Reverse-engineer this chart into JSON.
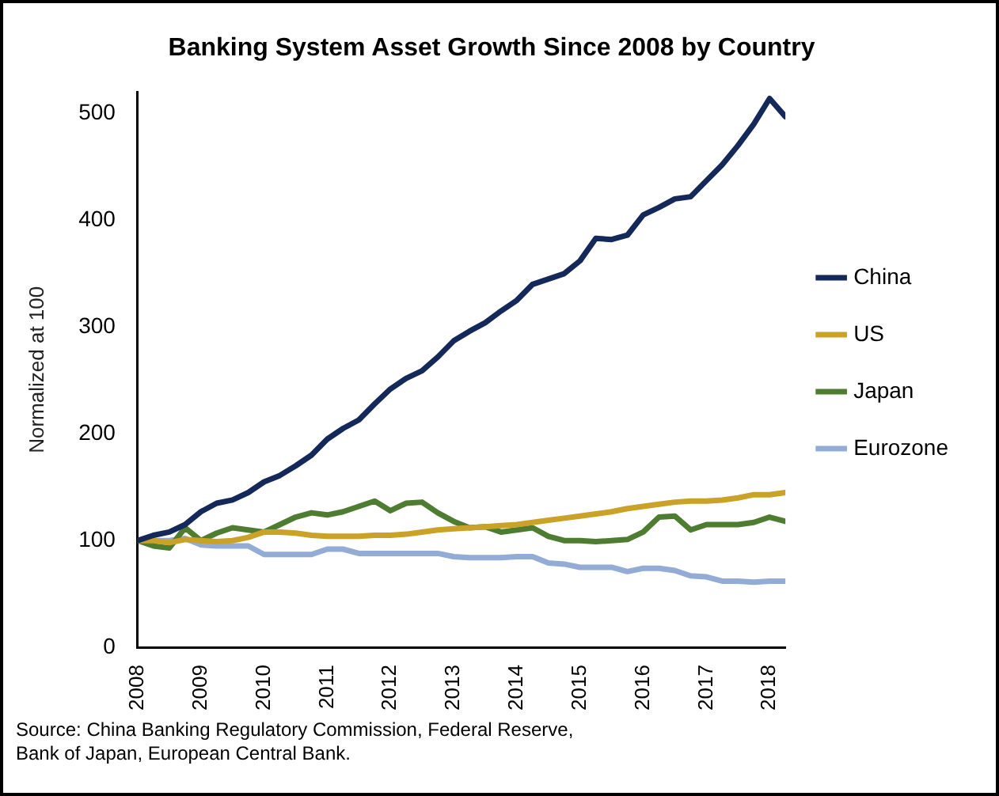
{
  "chart_data": {
    "type": "line",
    "title": "Banking System Asset Growth Since 2008 by Country",
    "ylabel": "Normalized at 100",
    "x": [
      2008,
      2008.25,
      2008.5,
      2008.75,
      2009,
      2009.25,
      2009.5,
      2009.75,
      2010,
      2010.25,
      2010.5,
      2010.75,
      2011,
      2011.25,
      2011.5,
      2011.75,
      2012,
      2012.25,
      2012.5,
      2012.75,
      2013,
      2013.25,
      2013.5,
      2013.75,
      2014,
      2014.25,
      2014.5,
      2014.75,
      2015,
      2015.25,
      2015.5,
      2015.75,
      2016,
      2016.25,
      2016.5,
      2016.75,
      2017,
      2017.25,
      2017.5,
      2017.75,
      2018,
      2018.25
    ],
    "series": [
      {
        "name": "China",
        "color": "#14285a",
        "values": [
          100,
          105,
          108,
          115,
          127,
          135,
          138,
          145,
          155,
          161,
          170,
          180,
          195,
          205,
          213,
          228,
          242,
          252,
          259,
          272,
          287,
          296,
          304,
          315,
          325,
          340,
          345,
          350,
          362,
          383,
          382,
          386,
          405,
          412,
          420,
          422,
          437,
          452,
          470,
          490,
          514,
          497
        ]
      },
      {
        "name": "US",
        "color": "#c9a227",
        "values": [
          100,
          100,
          98,
          101,
          100,
          99,
          100,
          103,
          108,
          108,
          107,
          105,
          104,
          104,
          104,
          105,
          105,
          106,
          108,
          110,
          111,
          112,
          113,
          114,
          115,
          117,
          119,
          121,
          123,
          125,
          127,
          130,
          132,
          134,
          136,
          137,
          137,
          138,
          140,
          143,
          143,
          145
        ]
      },
      {
        "name": "Japan",
        "color": "#4e7d32",
        "values": [
          100,
          95,
          93,
          112,
          100,
          107,
          112,
          110,
          108,
          115,
          122,
          126,
          124,
          127,
          132,
          137,
          128,
          135,
          136,
          126,
          118,
          112,
          113,
          108,
          110,
          112,
          104,
          100,
          100,
          99,
          100,
          101,
          108,
          122,
          123,
          110,
          115,
          115,
          115,
          117,
          122,
          118
        ]
      },
      {
        "name": "Eurozone",
        "color": "#92acd6",
        "values": [
          100,
          100,
          100,
          102,
          96,
          95,
          95,
          95,
          87,
          87,
          87,
          87,
          92,
          92,
          88,
          88,
          88,
          88,
          88,
          88,
          85,
          84,
          84,
          84,
          85,
          85,
          79,
          78,
          75,
          75,
          75,
          71,
          74,
          74,
          72,
          67,
          66,
          62,
          62,
          61,
          62,
          62
        ]
      }
    ],
    "xlim": [
      2008,
      2018.25
    ],
    "xticks": [
      2008,
      2009,
      2010,
      2011,
      2012,
      2013,
      2014,
      2015,
      2016,
      2017,
      2018
    ],
    "ylim": [
      0,
      520
    ],
    "yticks": [
      0,
      100,
      200,
      300,
      400,
      500
    ],
    "grid": false,
    "legend": "right",
    "marker": "none",
    "line_style": "solid",
    "annotations": [
      "Source: China Banking Regulatory Commission, Federal Reserve, Bank of Japan, European Central Bank."
    ]
  }
}
